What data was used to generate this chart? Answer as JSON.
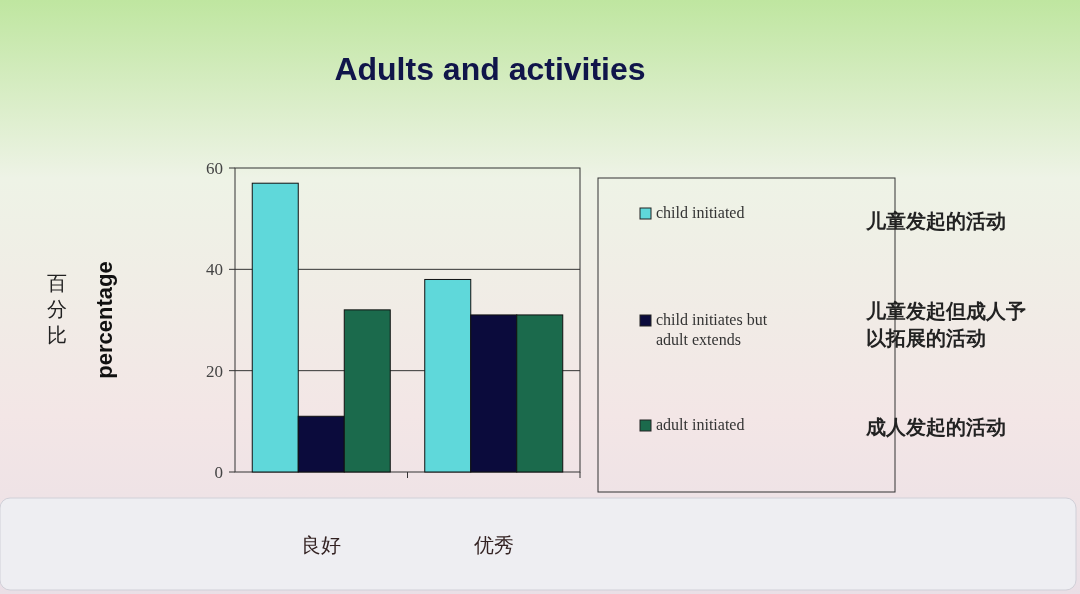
{
  "chart_data": {
    "type": "bar",
    "title": "Adults and activities",
    "ylabel": "percentage",
    "categories": [
      "良好",
      "优秀"
    ],
    "series": [
      {
        "name": "child initiated",
        "color": "#5fd8da",
        "values": [
          57,
          38
        ]
      },
      {
        "name": "child initiates but adult extends",
        "color": "#0b0b3c",
        "values": [
          11,
          31
        ]
      },
      {
        "name": "adult initiated",
        "color": "#1b6a4c",
        "values": [
          32,
          31
        ]
      }
    ],
    "ylim": [
      0,
      60
    ],
    "yticks": [
      0,
      20,
      40,
      60
    ],
    "grid": "y",
    "legend": "right",
    "annotations": [
      "百分比",
      "儿童发起的活动",
      "儿童发起但成人予以拓展的活动",
      "成人发起的活动"
    ]
  }
}
